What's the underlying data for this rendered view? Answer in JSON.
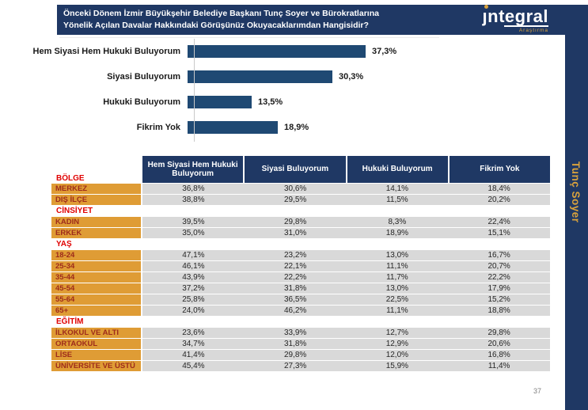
{
  "header": {
    "title_line1": "Önceki Dönem İzmir Büyükşehir Belediye Başkanı Tunç Soyer  ve Bürokratlarına",
    "title_line2": "Yönelik Açılan Davalar Hakkındaki Görüşünüz Okuyacaklarımdan Hangisidir?",
    "logo_text": "ntegral",
    "logo_sub": "Araştırma"
  },
  "side_tab": {
    "label": "Tunç Soyer"
  },
  "page_number": "37",
  "chart_data": [
    {
      "type": "bar",
      "orientation": "horizontal",
      "title": "Önceki Dönem İzmir Büyükşehir Belediye Başkanı Tunç Soyer ve Bürokratlarına Yönelik Açılan Davalar Hakkındaki Görüşünüz Okuyacaklarımdan Hangisidir?",
      "categories": [
        "Hem Siyasi Hem Hukuki Buluyorum",
        "Siyasi Buluyorum",
        "Hukuki Buluyorum",
        "Fikrim Yok"
      ],
      "values": [
        37.3,
        30.3,
        13.5,
        18.9
      ],
      "value_labels": [
        "37,3%",
        "30,3%",
        "13,5%",
        "18,9%"
      ],
      "xlim": [
        0,
        40
      ],
      "grid": false,
      "legend": false
    },
    {
      "type": "table",
      "columns": [
        "Hem Siyasi Hem Hukuki Buluyorum",
        "Siyasi Buluyorum",
        "Hukuki Buluyorum",
        "Fikrim Yok"
      ],
      "sections": [
        {
          "title": "BÖLGE",
          "rows": [
            {
              "label": "MERKEZ",
              "values": [
                "36,8%",
                "30,6%",
                "14,1%",
                "18,4%"
              ]
            },
            {
              "label": "DIŞ İLÇE",
              "values": [
                "38,8%",
                "29,5%",
                "11,5%",
                "20,2%"
              ]
            }
          ]
        },
        {
          "title": "CİNSİYET",
          "rows": [
            {
              "label": "KADIN",
              "values": [
                "39,5%",
                "29,8%",
                "8,3%",
                "22,4%"
              ]
            },
            {
              "label": "ERKEK",
              "values": [
                "35,0%",
                "31,0%",
                "18,9%",
                "15,1%"
              ]
            }
          ]
        },
        {
          "title": "YAŞ",
          "rows": [
            {
              "label": "18-24",
              "values": [
                "47,1%",
                "23,2%",
                "13,0%",
                "16,7%"
              ]
            },
            {
              "label": "25-34",
              "values": [
                "46,1%",
                "22,1%",
                "11,1%",
                "20,7%"
              ]
            },
            {
              "label": "35-44",
              "values": [
                "43,9%",
                "22,2%",
                "11,7%",
                "22,2%"
              ]
            },
            {
              "label": "45-54",
              "values": [
                "37,2%",
                "31,8%",
                "13,0%",
                "17,9%"
              ]
            },
            {
              "label": "55-64",
              "values": [
                "25,8%",
                "36,5%",
                "22,5%",
                "15,2%"
              ]
            },
            {
              "label": "65+",
              "values": [
                "24,0%",
                "46,2%",
                "11,1%",
                "18,8%"
              ]
            }
          ]
        },
        {
          "title": "EĞİTİM",
          "rows": [
            {
              "label": "İLKOKUL VE ALTI",
              "values": [
                "23,6%",
                "33,9%",
                "12,7%",
                "29,8%"
              ]
            },
            {
              "label": "ORTAOKUL",
              "values": [
                "34,7%",
                "31,8%",
                "12,9%",
                "20,6%"
              ]
            },
            {
              "label": "LİSE",
              "values": [
                "41,4%",
                "29,8%",
                "12,0%",
                "16,8%"
              ]
            },
            {
              "label": "ÜNİVERSİTE VE ÜSTÜ",
              "values": [
                "45,4%",
                "27,3%",
                "15,9%",
                "11,4%"
              ]
            }
          ]
        }
      ]
    }
  ],
  "colors": {
    "navy": "#1F3864",
    "bar": "#1F4973",
    "orange": "#DF9C35",
    "row_gray": "#D9D9D9",
    "section_red": "#E00000",
    "label_red": "#9E2B1B",
    "gold": "#D9A23C",
    "page_gray": "#7F7F7F"
  }
}
